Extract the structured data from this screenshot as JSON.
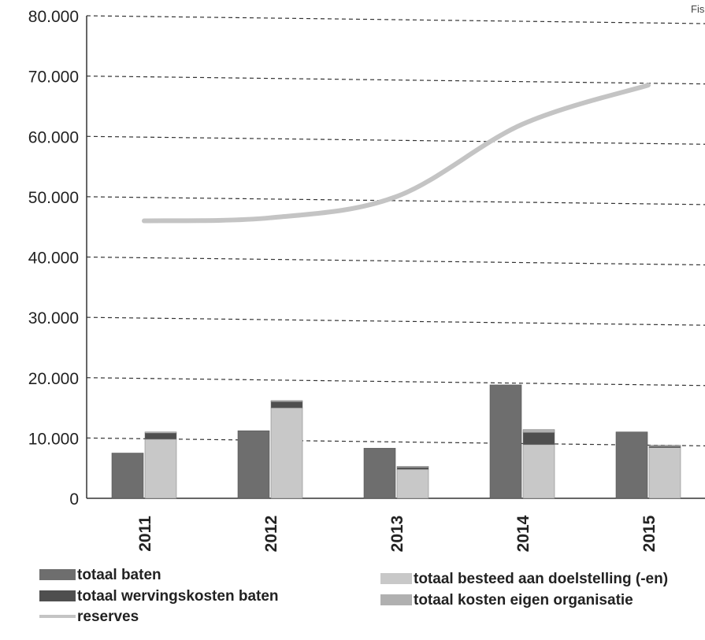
{
  "corner_text": "Fis",
  "chart_data": {
    "type": "bar",
    "categories": [
      "2011",
      "2012",
      "2013",
      "2014",
      "2015"
    ],
    "ylim": [
      0,
      80000
    ],
    "yticks": [
      0,
      10000,
      20000,
      30000,
      40000,
      50000,
      60000,
      70000,
      80000
    ],
    "ytick_labels": [
      "0",
      "10.000",
      "20.000",
      "30.000",
      "40.000",
      "50.000",
      "60.000",
      "70.000",
      "80.000"
    ],
    "grid": true,
    "legend_position": "bottom",
    "series": [
      {
        "name": "totaal baten",
        "kind": "bar",
        "stack": "baten",
        "color": "#6e6e6e",
        "values": [
          7500,
          11200,
          8300,
          18800,
          11000
        ]
      },
      {
        "name": "totaal besteed aan doelstelling (-en)",
        "kind": "bar",
        "stack": "lasten",
        "color": "#c8c8c8",
        "values": [
          9800,
          15000,
          4800,
          8900,
          8400
        ]
      },
      {
        "name": "totaal wervingskosten baten",
        "kind": "bar",
        "stack": "lasten",
        "color": "#4f4f4f",
        "values": [
          1000,
          1000,
          300,
          2000,
          200
        ]
      },
      {
        "name": "totaal kosten eigen organisatie",
        "kind": "bar",
        "stack": "lasten",
        "color": "#b0b0b0",
        "values": [
          200,
          200,
          200,
          500,
          200
        ]
      },
      {
        "name": "reserves",
        "kind": "line",
        "color": "#c4c4c4",
        "values": [
          46000,
          46500,
          50000,
          62000,
          68500
        ]
      }
    ]
  }
}
